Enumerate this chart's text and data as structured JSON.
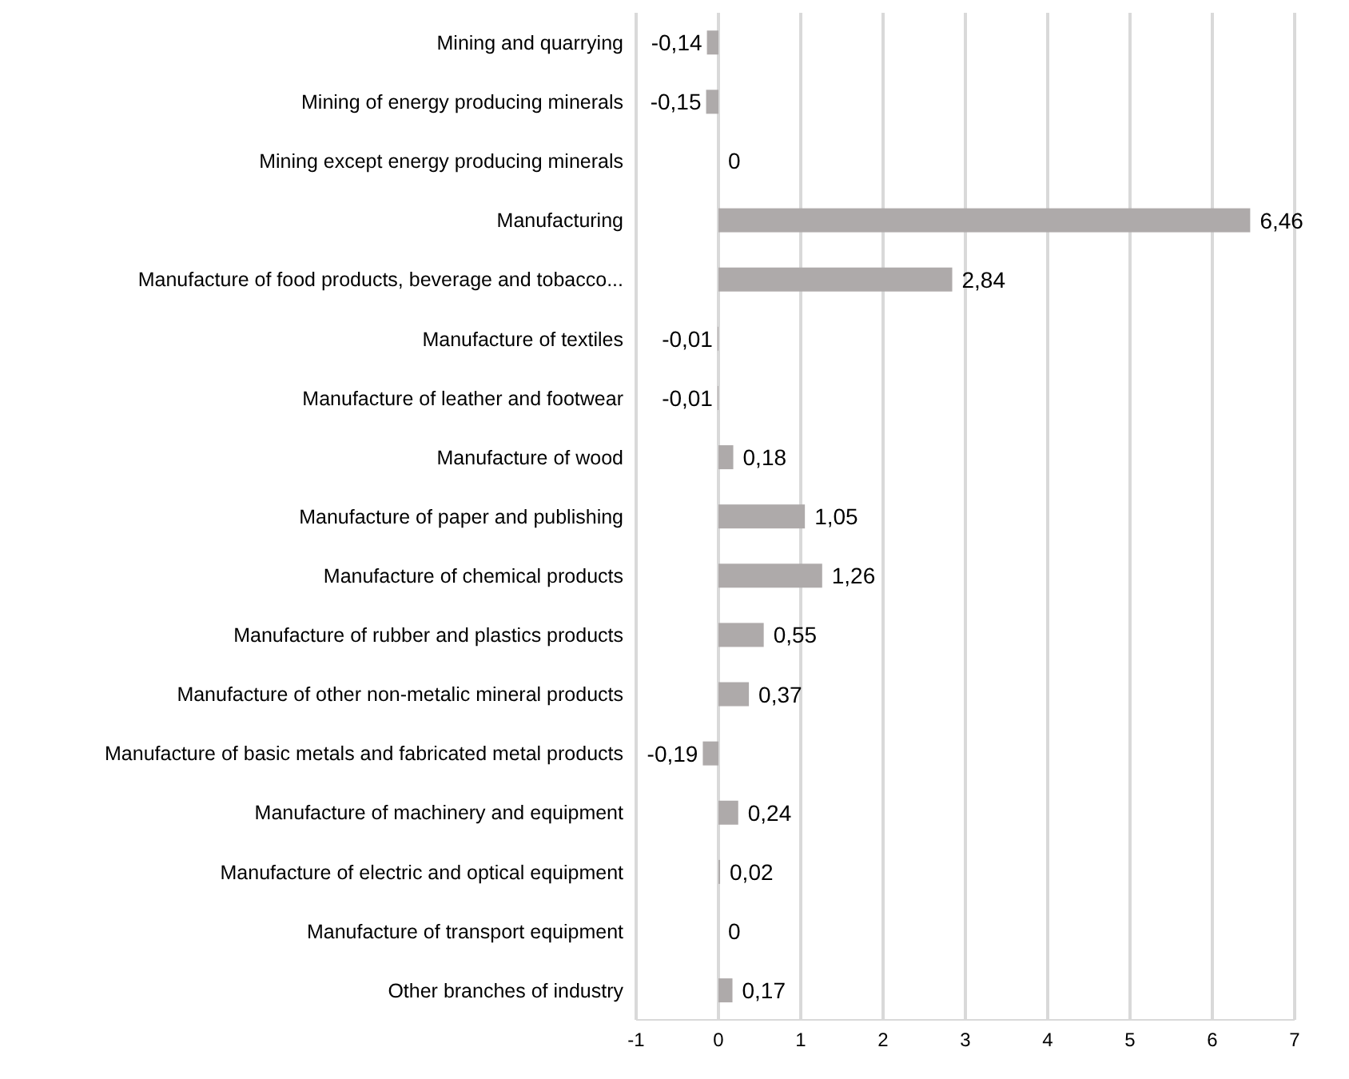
{
  "chart_data": {
    "type": "bar",
    "orientation": "horizontal",
    "categories": [
      "Mining and quarrying",
      "Mining of energy producing minerals",
      "Mining except energy producing minerals",
      "Manufacturing",
      "Manufacture of food products, beverage and tobacco...",
      "Manufacture of textiles",
      "Manufacture of leather and footwear",
      "Manufacture of wood",
      "Manufacture of paper and publishing",
      "Manufacture of chemical products",
      "Manufacture of rubber and plastics products",
      "Manufacture of other non-metalic mineral products",
      "Manufacture of basic metals and fabricated metal products",
      "Manufacture of machinery and equipment",
      "Manufacture of electric and optical equipment",
      "Manufacture of transport equipment",
      "Other branches of industry"
    ],
    "values": [
      -0.14,
      -0.15,
      0,
      6.46,
      2.84,
      -0.01,
      -0.01,
      0.18,
      1.05,
      1.26,
      0.55,
      0.37,
      -0.19,
      0.24,
      0.02,
      0,
      0.17
    ],
    "value_labels": [
      "-0,14",
      "-0,15",
      "0",
      "6,46",
      "2,84",
      "-0,01",
      "-0,01",
      "0,18",
      "1,05",
      "1,26",
      "0,55",
      "0,37",
      "-0,19",
      "0,24",
      "0,02",
      "0",
      "0,17"
    ],
    "color": "#aeaaaa",
    "xlim": [
      -1,
      7
    ],
    "xticks": [
      -1,
      0,
      1,
      2,
      3,
      4,
      5,
      6,
      7
    ],
    "grid": "x"
  }
}
